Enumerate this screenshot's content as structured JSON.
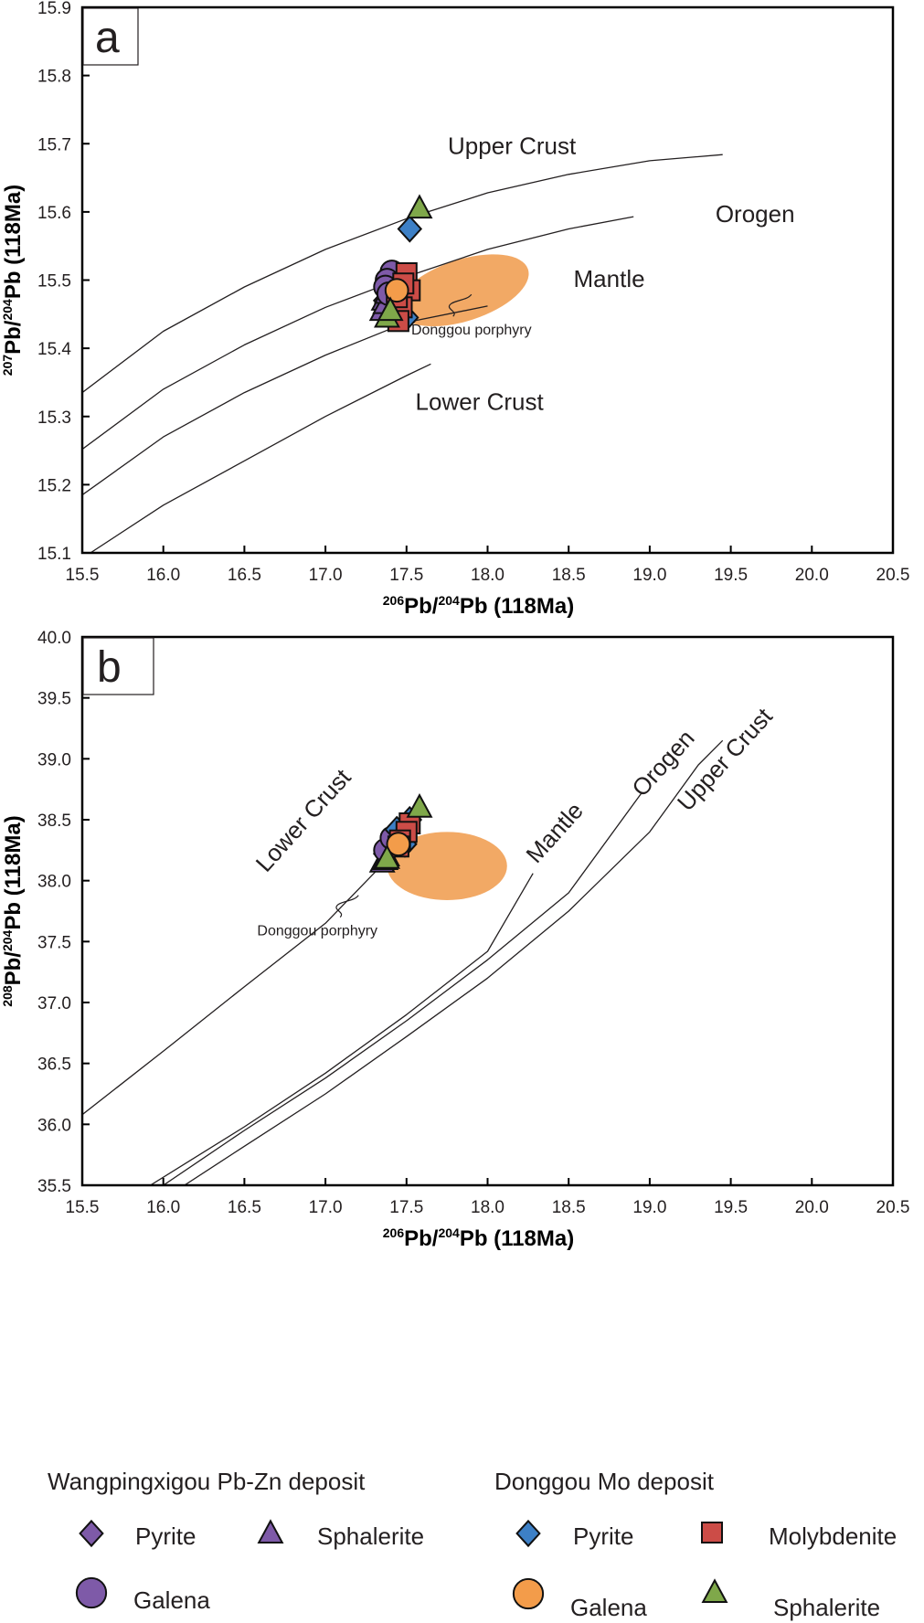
{
  "chart_data": [
    {
      "type": "scatter",
      "panel": "a",
      "xlabel": {
        "sup1": "206",
        "base1": "Pb/",
        "sup2": "204",
        "base2": "Pb (118Ma)"
      },
      "ylabel": {
        "sup1": "207",
        "base1": "Pb/",
        "sup2": "204",
        "base2": "Pb (118Ma)"
      },
      "xlim": [
        15.5,
        20.5
      ],
      "ylim": [
        15.1,
        15.9
      ],
      "xticks": [
        "15.5",
        "16.0",
        "16.5",
        "17.0",
        "17.5",
        "18.0",
        "18.5",
        "19.0",
        "19.5",
        "20.0",
        "20.5"
      ],
      "yticks": [
        "15.1",
        "15.2",
        "15.3",
        "15.4",
        "15.5",
        "15.6",
        "15.7",
        "15.8",
        "15.9"
      ],
      "grid": false,
      "curves": [
        {
          "name": "Upper Crust",
          "points": [
            [
              15.5,
              15.335
            ],
            [
              16.0,
              15.425
            ],
            [
              16.5,
              15.49
            ],
            [
              17.0,
              15.545
            ],
            [
              17.5,
              15.59
            ],
            [
              18.0,
              15.628
            ],
            [
              18.5,
              15.655
            ],
            [
              19.0,
              15.675
            ],
            [
              19.45,
              15.684
            ]
          ]
        },
        {
          "name": "Orogen",
          "points": [
            [
              15.5,
              15.252
            ],
            [
              16.0,
              15.34
            ],
            [
              16.5,
              15.405
            ],
            [
              17.0,
              15.46
            ],
            [
              17.5,
              15.505
            ],
            [
              18.0,
              15.545
            ],
            [
              18.5,
              15.575
            ],
            [
              18.9,
              15.593
            ]
          ]
        },
        {
          "name": "Mantle",
          "points": [
            [
              15.5,
              15.185
            ],
            [
              16.0,
              15.27
            ],
            [
              16.5,
              15.335
            ],
            [
              17.0,
              15.39
            ],
            [
              17.5,
              15.438
            ],
            [
              18.0,
              15.462
            ]
          ]
        },
        {
          "name": "Lower Crust",
          "points": [
            [
              15.55,
              15.1
            ],
            [
              16.0,
              15.17
            ],
            [
              16.5,
              15.235
            ],
            [
              17.0,
              15.3
            ],
            [
              17.5,
              15.36
            ],
            [
              17.65,
              15.377
            ]
          ]
        }
      ],
      "region_labels": [
        {
          "text": "Upper Crust",
          "x": 18.15,
          "y": 15.685
        },
        {
          "text": "Orogen",
          "x": 19.65,
          "y": 15.585
        },
        {
          "text": "Mantle",
          "x": 18.75,
          "y": 15.49
        },
        {
          "text": "Lower Crust",
          "x": 17.95,
          "y": 15.31
        }
      ],
      "field": {
        "name": "Donggou porphyry",
        "cx": 17.85,
        "cy": 15.485,
        "rx": 0.42,
        "ry": 0.045,
        "rotation_deg": -18,
        "color": "#f2a965"
      },
      "field_label": {
        "text": "Donggou porphyry",
        "x": 17.9,
        "y": 15.42
      },
      "series": [
        {
          "name": "Wangpingxigou Pyrite",
          "marker": "diamond",
          "color": "#7e5aa8",
          "points": [
            [
              17.37,
              15.47
            ],
            [
              17.38,
              15.49
            ]
          ]
        },
        {
          "name": "Wangpingxigou Sphalerite",
          "marker": "triangle",
          "color": "#7e5aa8",
          "points": [
            [
              17.35,
              15.455
            ],
            [
              17.36,
              15.47
            ],
            [
              17.37,
              15.465
            ],
            [
              17.38,
              15.48
            ]
          ]
        },
        {
          "name": "Wangpingxigou Galena",
          "marker": "circle",
          "color": "#7e5aa8",
          "points": [
            [
              17.41,
              15.512
            ],
            [
              17.38,
              15.5
            ],
            [
              17.37,
              15.49
            ],
            [
              17.39,
              15.48
            ]
          ]
        },
        {
          "name": "Donggou Pyrite",
          "marker": "diamond",
          "color": "#3d80c6",
          "points": [
            [
              17.52,
              15.575
            ],
            [
              17.46,
              15.47
            ],
            [
              17.5,
              15.445
            ],
            [
              17.44,
              15.455
            ]
          ]
        },
        {
          "name": "Donggou Molybdenite",
          "marker": "square",
          "color": "#cc4c47",
          "points": [
            [
              17.5,
              15.51
            ],
            [
              17.52,
              15.485
            ],
            [
              17.48,
              15.495
            ],
            [
              17.47,
              15.46
            ],
            [
              17.45,
              15.44
            ],
            [
              17.44,
              15.475
            ]
          ]
        },
        {
          "name": "Donggou Galena",
          "marker": "circle",
          "color": "#f39c4a",
          "points": [
            [
              17.44,
              15.485
            ]
          ]
        },
        {
          "name": "Donggou Sphalerite",
          "marker": "triangle",
          "color": "#7fa84a",
          "points": [
            [
              17.58,
              15.605
            ],
            [
              17.38,
              15.445
            ],
            [
              17.4,
              15.455
            ]
          ]
        }
      ]
    },
    {
      "type": "scatter",
      "panel": "b",
      "xlabel": {
        "sup1": "206",
        "base1": "Pb/",
        "sup2": "204",
        "base2": "Pb (118Ma)"
      },
      "ylabel": {
        "sup1": "208",
        "base1": "Pb/",
        "sup2": "204",
        "base2": "Pb (118Ma)"
      },
      "xlim": [
        15.5,
        20.5
      ],
      "ylim": [
        35.5,
        40.0
      ],
      "xticks": [
        "15.5",
        "16.0",
        "16.5",
        "17.0",
        "17.5",
        "18.0",
        "18.5",
        "19.0",
        "19.5",
        "20.0",
        "20.5"
      ],
      "yticks": [
        "35.5",
        "36.0",
        "36.5",
        "37.0",
        "37.5",
        "38.0",
        "38.5",
        "39.0",
        "39.5",
        "40.0"
      ],
      "grid": false,
      "curves": [
        {
          "name": "Lower Crust",
          "points": [
            [
              15.5,
              36.08
            ],
            [
              16.0,
              36.6
            ],
            [
              16.5,
              37.13
            ],
            [
              17.0,
              37.65
            ],
            [
              17.35,
              38.13
            ]
          ]
        },
        {
          "name": "Mantle",
          "points": [
            [
              15.92,
              35.5
            ],
            [
              16.5,
              35.98
            ],
            [
              17.0,
              36.42
            ],
            [
              17.5,
              36.9
            ],
            [
              18.0,
              37.42
            ],
            [
              18.28,
              38.06
            ]
          ]
        },
        {
          "name": "Orogen",
          "points": [
            [
              16.0,
              35.5
            ],
            [
              16.5,
              35.95
            ],
            [
              17.0,
              36.38
            ],
            [
              17.5,
              36.85
            ],
            [
              18.0,
              37.35
            ],
            [
              18.5,
              37.9
            ],
            [
              18.95,
              38.72
            ]
          ]
        },
        {
          "name": "Upper Crust",
          "points": [
            [
              16.13,
              35.5
            ],
            [
              16.5,
              35.82
            ],
            [
              17.0,
              36.25
            ],
            [
              17.5,
              36.72
            ],
            [
              18.0,
              37.2
            ],
            [
              18.5,
              37.75
            ],
            [
              19.0,
              38.4
            ],
            [
              19.3,
              38.95
            ],
            [
              19.45,
              39.15
            ]
          ]
        }
      ],
      "region_labels": [
        {
          "text": "Lower Crust",
          "x": 16.9,
          "y": 38.45,
          "angle": -48
        },
        {
          "text": "Mantle",
          "x": 18.45,
          "y": 38.35,
          "angle": -48
        },
        {
          "text": "Orogen",
          "x": 19.12,
          "y": 38.92,
          "angle": -48
        },
        {
          "text": "Upper Crust",
          "x": 19.5,
          "y": 38.95,
          "angle": -48
        }
      ],
      "field": {
        "name": "Donggou porphyry",
        "cx": 17.75,
        "cy": 38.12,
        "rx": 0.37,
        "ry": 0.28,
        "rotation_deg": 0,
        "color": "#f2a965"
      },
      "field_label": {
        "text": "Donggou porphyry",
        "x": 16.95,
        "y": 37.55
      },
      "series": [
        {
          "name": "Wangpingxigou Pyrite",
          "marker": "diamond",
          "color": "#7e5aa8",
          "points": [
            [
              17.37,
              38.22
            ],
            [
              17.39,
              38.28
            ]
          ]
        },
        {
          "name": "Wangpingxigou Sphalerite",
          "marker": "triangle",
          "color": "#7e5aa8",
          "points": [
            [
              17.35,
              38.15
            ],
            [
              17.37,
              38.17
            ],
            [
              17.38,
              38.2
            ]
          ]
        },
        {
          "name": "Wangpingxigou Galena",
          "marker": "circle",
          "color": "#7e5aa8",
          "points": [
            [
              17.37,
              38.25
            ],
            [
              17.41,
              38.35
            ]
          ]
        },
        {
          "name": "Donggou Pyrite",
          "marker": "diamond",
          "color": "#3d80c6",
          "points": [
            [
              17.52,
              38.5
            ],
            [
              17.44,
              38.42
            ],
            [
              17.47,
              38.36
            ],
            [
              17.49,
              38.3
            ]
          ]
        },
        {
          "name": "Donggou Molybdenite",
          "marker": "square",
          "color": "#cc4c47",
          "points": [
            [
              17.52,
              38.47
            ],
            [
              17.5,
              38.4
            ],
            [
              17.46,
              38.33
            ],
            [
              17.45,
              38.28
            ]
          ]
        },
        {
          "name": "Donggou Galena",
          "marker": "circle",
          "color": "#f39c4a",
          "points": [
            [
              17.45,
              38.3
            ]
          ]
        },
        {
          "name": "Donggou Sphalerite",
          "marker": "triangle",
          "color": "#7fa84a",
          "points": [
            [
              17.58,
              38.6
            ],
            [
              17.38,
              38.18
            ]
          ]
        }
      ]
    }
  ],
  "legend": {
    "groups": [
      {
        "title": "Wangpingxigou Pb-Zn deposit",
        "items": [
          {
            "label": "Pyrite",
            "marker": "diamond",
            "color": "#7e5aa8"
          },
          {
            "label": "Sphalerite",
            "marker": "triangle",
            "color": "#7e5aa8"
          },
          {
            "label": "Galena",
            "marker": "circle",
            "color": "#7e5aa8"
          }
        ]
      },
      {
        "title": "Donggou Mo deposit",
        "items": [
          {
            "label": "Pyrite",
            "marker": "diamond",
            "color": "#3d80c6"
          },
          {
            "label": "Molybdenite",
            "marker": "square",
            "color": "#cc4c47"
          },
          {
            "label": "Galena",
            "marker": "circle",
            "color": "#f39c4a"
          },
          {
            "label": "Sphalerite",
            "marker": "triangle",
            "color": "#7fa84a"
          }
        ]
      }
    ]
  }
}
